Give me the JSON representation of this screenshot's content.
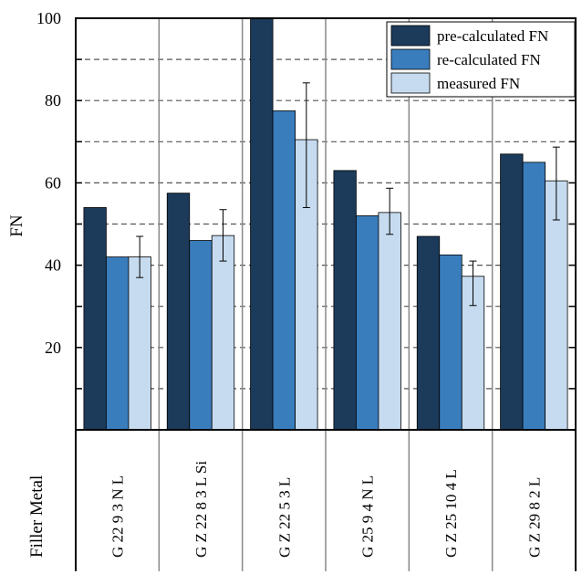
{
  "chart_data": {
    "type": "bar",
    "ylabel": "FN",
    "table_row_label": "Filler Metal",
    "ylim": [
      0,
      100
    ],
    "yticks": [
      "20",
      "40",
      "60",
      "80",
      "100"
    ],
    "categories": [
      "G 22 9 3 N L",
      "G Z 22 8 3 L Si",
      "G Z 22 5 3 L",
      "G 25 9 4 N L",
      "G Z 25 10 4 L",
      "G Z 29 8 2 L"
    ],
    "series": [
      {
        "name": "pre-calculated FN",
        "color": "#1c3a5a",
        "values": [
          54,
          57.5,
          100,
          63,
          47,
          67
        ]
      },
      {
        "name": "re-calculated FN",
        "color": "#3a7dbd",
        "values": [
          42,
          46,
          77.5,
          52,
          42.5,
          65
        ]
      },
      {
        "name": "measured FN",
        "color": "#c6dbef",
        "values": [
          42,
          47.2,
          70.5,
          52.8,
          37.3,
          60.5
        ],
        "error_low": [
          37,
          41,
          54,
          47.5,
          30.2,
          51
        ],
        "error_high": [
          47,
          53.5,
          84.3,
          58.7,
          41,
          68.7
        ]
      }
    ],
    "grid": "horizontal dashed",
    "legend_position": "top-right"
  }
}
